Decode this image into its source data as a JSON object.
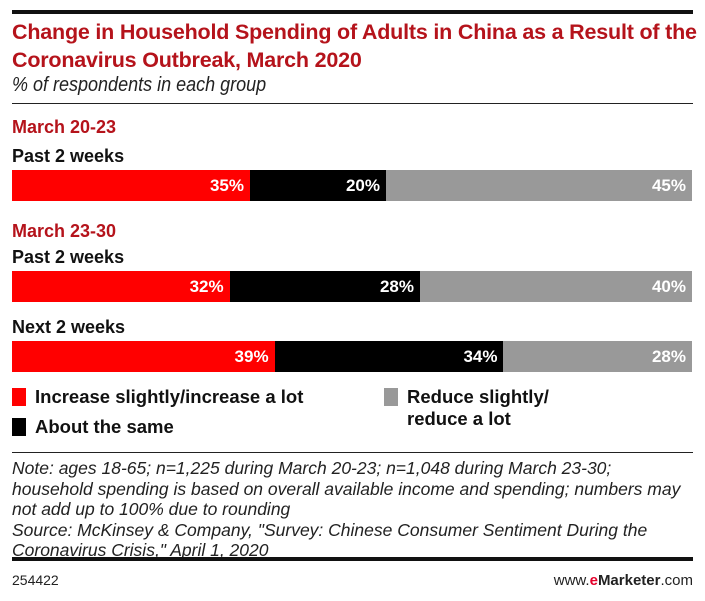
{
  "chart_data": {
    "type": "bar",
    "orientation": "horizontal",
    "stacked": true,
    "title": "Change in Household Spending of Adults in China as a Result of the Coronavirus Outbreak, March 2020",
    "subtitle": "% of respondents in each group",
    "groups": [
      {
        "label": "March 20-23",
        "rows": [
          {
            "label": "Past 2 weeks",
            "values": [
              35,
              20,
              45
            ]
          }
        ]
      },
      {
        "label": "March 23-30",
        "rows": [
          {
            "label": "Past 2 weeks",
            "values": [
              32,
              28,
              40
            ]
          },
          {
            "label": "Next 2 weeks",
            "values": [
              39,
              34,
              28
            ]
          }
        ]
      }
    ],
    "series": [
      {
        "name": "Increase slightly/increase a lot",
        "color": "#ff0000"
      },
      {
        "name": "About the same",
        "color": "#000000"
      },
      {
        "name": "Reduce slightly/ reduce a lot",
        "name_lines": [
          "Reduce slightly/",
          "reduce a lot"
        ],
        "color": "#999999"
      }
    ],
    "value_suffix": "%",
    "legend_position": "bottom",
    "grid": false
  },
  "note": "Note: ages 18-65; n=1,225 during March 20-23; n=1,048 during March 23-30; household spending is based on overall available income and spending; numbers may not add up to 100% due to rounding",
  "source": "Source: McKinsey & Company, \"Survey: Chinese Consumer Sentiment During the Coronavirus Crisis,\" April 1, 2020",
  "footer": {
    "id": "254422",
    "brand_prefix": "www.",
    "brand_e": "e",
    "brand_name": "Marketer",
    "brand_suffix": ".com"
  }
}
